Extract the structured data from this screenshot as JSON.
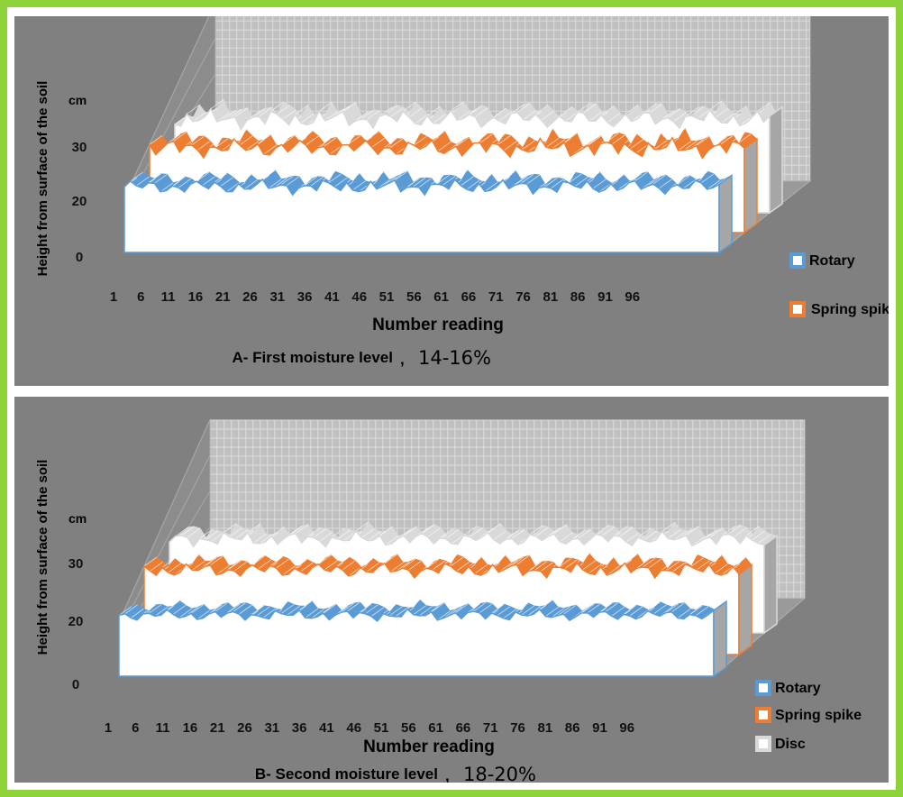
{
  "chart_data": [
    {
      "type": "area",
      "style": "3d-ribbon",
      "caption": "A- First moisture level",
      "caption_value": "14-16%",
      "caption_sep": ",",
      "ylabel": "Height from surface of the soil",
      "unit": "cm",
      "xlabel": "Number reading",
      "yticks": [
        "0",
        "20",
        "30"
      ],
      "xticks": [
        "1",
        "6",
        "11",
        "16",
        "21",
        "26",
        "31",
        "36",
        "41",
        "46",
        "51",
        "56",
        "61",
        "66",
        "71",
        "76",
        "81",
        "86",
        "91",
        "96"
      ],
      "x_range": [
        1,
        100
      ],
      "legend_position": "right",
      "grid": true,
      "legend": [
        {
          "name": "Rotary",
          "color": "#5b9bd5"
        },
        {
          "name": "Spring spike",
          "color": "#ed7d31"
        }
      ],
      "series": [
        {
          "name": "Rotary",
          "color": "#5b9bd5",
          "level": 24,
          "amplitude": 1.6
        },
        {
          "name": "Spring spike",
          "color": "#ed7d31",
          "level": 28,
          "amplitude": 2.0
        },
        {
          "color": "#d9d9d9",
          "level": 30,
          "amplitude": 2.0
        }
      ]
    },
    {
      "type": "area",
      "style": "3d-ribbon",
      "caption": "B- Second moisture level",
      "caption_value": "18-20%",
      "caption_sep": ",",
      "ylabel": "Height from surface of the soil",
      "unit": "cm",
      "xlabel": "Number reading",
      "yticks": [
        "0",
        "20",
        "30"
      ],
      "xticks": [
        "1",
        "6",
        "11",
        "16",
        "21",
        "26",
        "31",
        "36",
        "41",
        "46",
        "51",
        "56",
        "61",
        "66",
        "71",
        "76",
        "81",
        "86",
        "91",
        "96"
      ],
      "x_range": [
        1,
        100
      ],
      "legend_position": "right",
      "grid": true,
      "legend": [
        {
          "name": "Rotary",
          "color": "#5b9bd5"
        },
        {
          "name": "Spring spike",
          "color": "#ed7d31"
        },
        {
          "name": "Disc",
          "color": "#d9d9d9"
        }
      ],
      "series": [
        {
          "name": "Rotary",
          "color": "#5b9bd5",
          "level": 23,
          "amplitude": 1.2
        },
        {
          "name": "Spring spike",
          "color": "#ed7d31",
          "level": 28,
          "amplitude": 1.6
        },
        {
          "name": "Disc",
          "color": "#d9d9d9",
          "level": 30,
          "amplitude": 1.6
        }
      ]
    }
  ]
}
